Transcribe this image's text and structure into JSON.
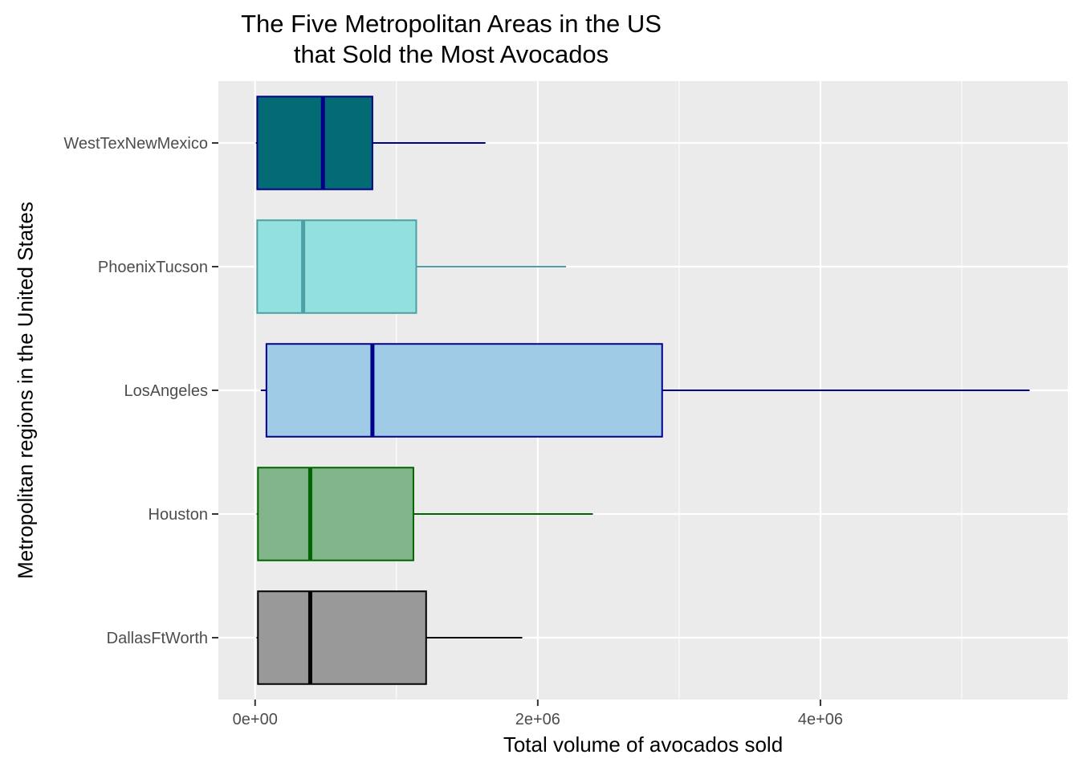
{
  "chart_data": {
    "type": "boxplot",
    "orientation": "horizontal",
    "title_lines": [
      "The Five Metropolitan Areas in the US",
      "that Sold the Most Avocados"
    ],
    "xlabel": "Total volume of avocados sold",
    "ylabel": "Metropolitan regions in the United States",
    "xlim": [
      -260000,
      5750000
    ],
    "x_ticks": [
      0,
      2000000,
      4000000
    ],
    "x_tick_labels": [
      "0e+00",
      "2e+06",
      "4e+06"
    ],
    "x_minor_ticks": [
      1000000,
      3000000,
      5000000
    ],
    "grid": true,
    "legend": "none",
    "categories": [
      "WestTexNewMexico",
      "PhoenixTucson",
      "LosAngeles",
      "Houston",
      "DallasFtWorth"
    ],
    "boxes": [
      {
        "category": "WestTexNewMexico",
        "whisker_low": 5000,
        "q1": 15000,
        "median": 480000,
        "q3": 830000,
        "whisker_high": 1630000,
        "fill": "#036B73",
        "outline": "#00008B"
      },
      {
        "category": "PhoenixTucson",
        "whisker_low": 10000,
        "q1": 15000,
        "median": 340000,
        "q3": 1140000,
        "whisker_high": 2200000,
        "fill": "#92E1DE",
        "outline": "#4C9FA3"
      },
      {
        "category": "LosAngeles",
        "whisker_low": 40000,
        "q1": 80000,
        "median": 830000,
        "q3": 2880000,
        "whisker_high": 5480000,
        "fill": "#9FCBE6",
        "outline": "#00008B"
      },
      {
        "category": "Houston",
        "whisker_low": 10000,
        "q1": 20000,
        "median": 390000,
        "q3": 1120000,
        "whisker_high": 2390000,
        "fill": "#82B58A",
        "outline": "#006400"
      },
      {
        "category": "DallasFtWorth",
        "whisker_low": 10000,
        "q1": 20000,
        "median": 390000,
        "q3": 1210000,
        "whisker_high": 1890000,
        "fill": "#999999",
        "outline": "#000000"
      }
    ]
  }
}
